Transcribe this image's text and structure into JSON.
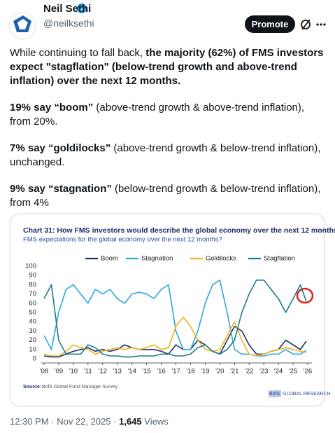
{
  "header": {
    "name": "Neil Sethi",
    "handle": "@neilksethi",
    "button": "Promote"
  },
  "tweet": {
    "paragraphs": [
      [
        {
          "text": "While continuing to fall back, ",
          "bold": false
        },
        {
          "text": "the majority (62%) of FMS investors expect \"stagflation\" (below-trend growth and above-trend inflation) over the next 12 months.",
          "bold": true
        }
      ],
      [
        {
          "text": "19% say “boom”",
          "bold": true
        },
        {
          "text": " (above-trend growth &  above-trend inflation), from 20%.",
          "bold": false
        }
      ],
      [
        {
          "text": "7% say “goldilocks”",
          "bold": true
        },
        {
          "text": " (above-trend growth &  below-trend inflation), unchanged.",
          "bold": false
        }
      ],
      [
        {
          "text": "9% say “stagnation”",
          "bold": true
        },
        {
          "text": " (below-trend growth &  below-trend inflation), from 4%",
          "bold": false
        }
      ]
    ]
  },
  "chart_data": {
    "type": "line",
    "title": "Chart 31: How FMS investors would describe the global economy over the next 12 months",
    "subtitle": "FMS expectations for the global economy over the next 12 months?",
    "source_label": "Source:",
    "source": "BofA Global Fund Manager Survey",
    "branding": [
      "BofA",
      "GLOBAL RESEARCH"
    ],
    "x": [
      2008,
      2008.5,
      2009,
      2009.5,
      2010,
      2010.5,
      2011,
      2011.5,
      2012,
      2012.5,
      2013,
      2013.5,
      2014,
      2014.5,
      2015,
      2015.5,
      2016,
      2016.5,
      2017,
      2017.5,
      2018,
      2018.5,
      2019,
      2019.5,
      2020,
      2020.5,
      2021,
      2021.5,
      2022,
      2022.5,
      2023,
      2023.5,
      2024,
      2024.5,
      2025,
      2025.5,
      2025.9
    ],
    "series": [
      {
        "name": "Boom",
        "color": "#1f2d6b",
        "values": [
          3,
          2,
          2,
          5,
          8,
          10,
          12,
          8,
          10,
          8,
          10,
          15,
          12,
          10,
          10,
          10,
          8,
          5,
          15,
          10,
          10,
          20,
          15,
          8,
          5,
          20,
          35,
          30,
          15,
          5,
          5,
          8,
          10,
          20,
          15,
          10,
          19
        ]
      },
      {
        "name": "Stagnation",
        "color": "#2aa8e0",
        "values": [
          25,
          10,
          50,
          75,
          80,
          70,
          60,
          75,
          70,
          75,
          65,
          60,
          70,
          72,
          70,
          65,
          75,
          80,
          30,
          10,
          10,
          30,
          60,
          80,
          85,
          50,
          10,
          5,
          5,
          3,
          3,
          5,
          5,
          10,
          5,
          5,
          9
        ]
      },
      {
        "name": "Goldilocks",
        "color": "#f2b31a",
        "values": [
          5,
          3,
          3,
          8,
          15,
          12,
          10,
          5,
          8,
          10,
          12,
          10,
          12,
          10,
          12,
          15,
          10,
          12,
          35,
          45,
          35,
          20,
          10,
          8,
          10,
          25,
          40,
          20,
          5,
          3,
          5,
          8,
          10,
          12,
          10,
          8,
          7
        ]
      },
      {
        "name": "Stagflation",
        "color": "#1a7a8a",
        "values": [
          65,
          80,
          20,
          5,
          5,
          5,
          15,
          12,
          5,
          3,
          3,
          2,
          2,
          3,
          3,
          3,
          5,
          5,
          3,
          3,
          5,
          12,
          15,
          8,
          5,
          10,
          20,
          50,
          70,
          85,
          85,
          75,
          65,
          50,
          65,
          80,
          62
        ]
      }
    ],
    "xlim": [
      2008,
      2026
    ],
    "xticks": [
      {
        "value": 2008,
        "label": "'08"
      },
      {
        "value": 2009,
        "label": "'09"
      },
      {
        "value": 2010,
        "label": "'10"
      },
      {
        "value": 2011,
        "label": "'11"
      },
      {
        "value": 2012,
        "label": "'12"
      },
      {
        "value": 2013,
        "label": "'13"
      },
      {
        "value": 2014,
        "label": "'14"
      },
      {
        "value": 2015,
        "label": "'15"
      },
      {
        "value": 2016,
        "label": "'16"
      },
      {
        "value": 2017,
        "label": "'17"
      },
      {
        "value": 2018,
        "label": "'18"
      },
      {
        "value": 2019,
        "label": "'19"
      },
      {
        "value": 2020,
        "label": "'20"
      },
      {
        "value": 2021,
        "label": "'21"
      },
      {
        "value": 2022,
        "label": "'22"
      },
      {
        "value": 2023,
        "label": "'23"
      },
      {
        "value": 2024,
        "label": "'24"
      },
      {
        "value": 2025,
        "label": "'25"
      },
      {
        "value": 2026,
        "label": "'26"
      }
    ],
    "ylim": [
      0,
      100
    ],
    "yticks": [
      0,
      10,
      20,
      30,
      40,
      50,
      60,
      70,
      80,
      90,
      100
    ]
  },
  "footer": {
    "timestamp": "12:30 PM · Nov 22, 2025",
    "sep": "·",
    "views": "1,645",
    "views_label": "Views"
  }
}
